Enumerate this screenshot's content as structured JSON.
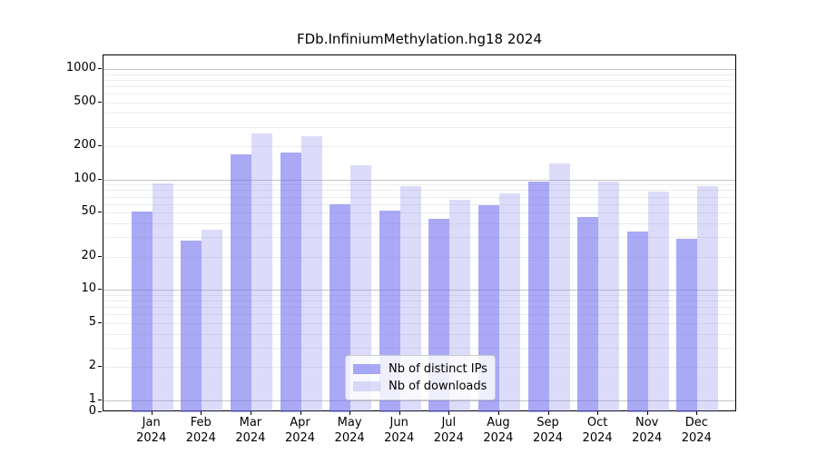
{
  "window": {
    "title": "FDb.InfiniumMethylation.hg18 2024"
  },
  "chart_data": {
    "type": "bar",
    "title": "FDb.InfiniumMethylation.hg18 2024",
    "xlabel": "",
    "ylabel": "",
    "categories": [
      "Jan 2024",
      "Feb 2024",
      "Mar 2024",
      "Apr 2024",
      "May 2024",
      "Jun 2024",
      "Jul 2024",
      "Aug 2024",
      "Sep 2024",
      "Oct 2024",
      "Nov 2024",
      "Dec 2024"
    ],
    "months": [
      "Jan",
      "Feb",
      "Mar",
      "Apr",
      "May",
      "Jun",
      "Jul",
      "Aug",
      "Sep",
      "Oct",
      "Nov",
      "Dec"
    ],
    "year": "2024",
    "series": [
      {
        "name": "Nb of distinct IPs",
        "color_rgba": "rgba(112,112,240,0.6)",
        "color_hex": "#a9a9f6",
        "values": [
          51,
          28,
          170,
          175,
          60,
          52,
          44,
          59,
          95,
          46,
          34,
          29
        ]
      },
      {
        "name": "Nb of downloads",
        "color_rgba": "rgba(139,139,238,0.3)",
        "color_hex": "#dcdcfa",
        "values": [
          93,
          35,
          260,
          245,
          135,
          87,
          65,
          75,
          140,
          95,
          78,
          87
        ]
      }
    ],
    "y_axis": {
      "scale": "log",
      "ticks": [
        1000,
        500,
        200,
        100,
        50,
        20,
        10,
        5,
        2,
        1,
        0
      ],
      "ylim": [
        0,
        1320
      ]
    },
    "grid": {
      "major_color": "#c4c4c4",
      "minor_color": "#ececec"
    },
    "legend": {
      "position": "lower-center"
    }
  }
}
